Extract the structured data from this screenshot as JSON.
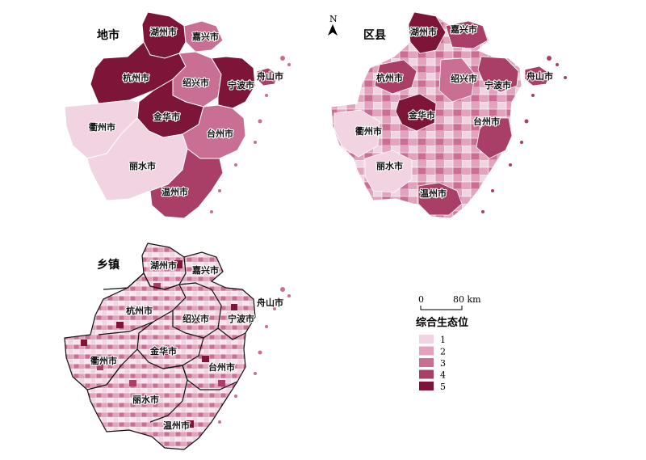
{
  "panels": [
    {
      "title": "地市"
    },
    {
      "title": "区县"
    },
    {
      "title": "乡镇"
    }
  ],
  "north_label": "N",
  "scale": {
    "zero": "0",
    "end": "80 km"
  },
  "legend": {
    "title": "综合生态位",
    "classes": [
      {
        "label": "1",
        "color": "#f2d3e1"
      },
      {
        "label": "2",
        "color": "#e3a3bd"
      },
      {
        "label": "3",
        "color": "#c96f93"
      },
      {
        "label": "4",
        "color": "#a93e66"
      },
      {
        "label": "5",
        "color": "#7d1538"
      }
    ]
  },
  "cities": [
    {
      "name": "湖州市",
      "cls": 5
    },
    {
      "name": "嘉兴市",
      "cls": 3
    },
    {
      "name": "杭州市",
      "cls": 5
    },
    {
      "name": "绍兴市",
      "cls": 3
    },
    {
      "name": "宁波市",
      "cls": 5
    },
    {
      "name": "舟山市",
      "cls": 4
    },
    {
      "name": "金华市",
      "cls": 5
    },
    {
      "name": "衢州市",
      "cls": 1
    },
    {
      "name": "台州市",
      "cls": 3
    },
    {
      "name": "丽水市",
      "cls": 1
    },
    {
      "name": "温州市",
      "cls": 4
    }
  ]
}
